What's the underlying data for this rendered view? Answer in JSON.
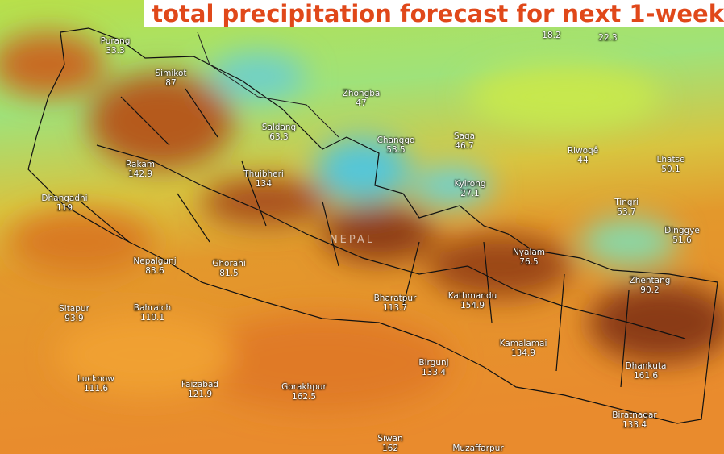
{
  "title": "total precipitation forecast for next 1-week",
  "region_label": "NEPAL",
  "places": [
    {
      "value": 18.2
    },
    {
      "value": 22.3
    },
    {
      "name": "Purang",
      "value": 33.3
    },
    {
      "name": "Simikot",
      "value": 87
    },
    {
      "name": "Zhongba",
      "value": 47
    },
    {
      "name": "Saldang",
      "value": 63.3
    },
    {
      "name": "Changgo",
      "value": 53.5
    },
    {
      "name": "Saga",
      "value": 46.7
    },
    {
      "name": "Riwoqê",
      "value": 44
    },
    {
      "name": "Lhatse",
      "value": 50.1
    },
    {
      "name": "Rakam",
      "value": 142.9
    },
    {
      "name": "Thuibheri",
      "value": 134
    },
    {
      "name": "Kyirong",
      "value": 27.1
    },
    {
      "name": "Dhangadhi",
      "value": 119
    },
    {
      "name": "Tingri",
      "value": 53.7
    },
    {
      "name": "Dinggye",
      "value": 51.6
    },
    {
      "name": "Nyalam",
      "value": 76.5
    },
    {
      "name": "Nepalgunj",
      "value": 83.6
    },
    {
      "name": "Ghorahi",
      "value": 81.5
    },
    {
      "name": "Zhentang",
      "value": 90.2
    },
    {
      "name": "Kathmandu",
      "value": 154.9
    },
    {
      "name": "Bharatpur",
      "value": 113.7
    },
    {
      "name": "Sitapur",
      "value": 93.9
    },
    {
      "name": "Bahraich",
      "value": 110.1
    },
    {
      "name": "Kamalamai",
      "value": 134.9
    },
    {
      "name": "Birgunj",
      "value": 133.4
    },
    {
      "name": "Dhankuta",
      "value": 161.6
    },
    {
      "name": "Lucknow",
      "value": 111.6
    },
    {
      "name": "Faizabad",
      "value": 121.9
    },
    {
      "name": "Gorakhpur",
      "value": 162.5
    },
    {
      "name": "Biratnagar",
      "value": 133.4
    },
    {
      "name": "Siwan",
      "value": 162
    },
    {
      "name": "Muzaffarpur"
    }
  ]
}
